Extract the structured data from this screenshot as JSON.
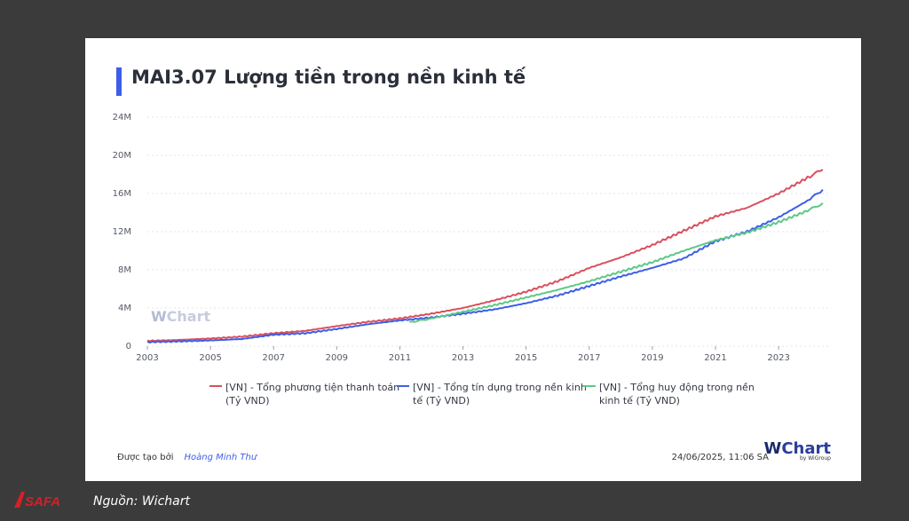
{
  "title": "MAI3.07 Lượng tiền trong nền kinh tế",
  "watermark": "Chart",
  "footer": {
    "created_by_label": "Được tạo bởi",
    "author": "Hoàng Minh Thư",
    "date": "24/06/2025, 11:06 SA",
    "logo_text": "Chart",
    "logo_by": "by WiGroup"
  },
  "source": "Nguồn: Wichart",
  "source_logo": "SAFA",
  "colors": {
    "accent": "#3d5ee8",
    "s1": "#d9505f",
    "s2": "#3d5ee8",
    "s3": "#5cc985"
  },
  "chart_data": {
    "type": "line",
    "title": "MAI3.07 Lượng tiền trong nền kinh tế",
    "xlim": [
      2003,
      2024.6
    ],
    "ylim": [
      0,
      24
    ],
    "yticks": [
      "0",
      "4M",
      "8M",
      "12M",
      "16M",
      "20M",
      "24M"
    ],
    "ytick_values": [
      0,
      4,
      8,
      12,
      16,
      20,
      24
    ],
    "xticks": [
      2003,
      2005,
      2007,
      2009,
      2011,
      2013,
      2015,
      2017,
      2019,
      2021,
      2023
    ],
    "grid": true,
    "legend_position": "bottom",
    "series": [
      {
        "name": "[VN] - Tổng phương tiện thanh toán (Tỷ VND)",
        "legend_lines": [
          "[VN] - Tổng phương tiện thanh toán",
          "(Tỷ VND)"
        ],
        "color": "#d9505f",
        "points": [
          [
            2003,
            0.55
          ],
          [
            2004,
            0.65
          ],
          [
            2005,
            0.8
          ],
          [
            2006,
            1.0
          ],
          [
            2007,
            1.35
          ],
          [
            2008,
            1.6
          ],
          [
            2009,
            2.1
          ],
          [
            2010,
            2.55
          ],
          [
            2011,
            2.9
          ],
          [
            2012,
            3.4
          ],
          [
            2013,
            4.0
          ],
          [
            2014,
            4.8
          ],
          [
            2015,
            5.7
          ],
          [
            2016,
            6.8
          ],
          [
            2017,
            8.2
          ],
          [
            2018,
            9.3
          ],
          [
            2019,
            10.6
          ],
          [
            2020,
            12.1
          ],
          [
            2021,
            13.6
          ],
          [
            2022,
            14.5
          ],
          [
            2023,
            16.0
          ],
          [
            2024,
            17.8
          ],
          [
            2024.4,
            18.5
          ]
        ]
      },
      {
        "name": "[VN] - Tổng tín dụng trong nền kinh tế (Tỷ VND)",
        "legend_lines": [
          "[VN] - Tổng tín dụng trong nền kinh",
          "tế (Tỷ VND)"
        ],
        "color": "#3d5ee8",
        "points": [
          [
            2003,
            0.42
          ],
          [
            2004,
            0.5
          ],
          [
            2005,
            0.6
          ],
          [
            2006,
            0.75
          ],
          [
            2007,
            1.2
          ],
          [
            2008,
            1.35
          ],
          [
            2009,
            1.8
          ],
          [
            2010,
            2.3
          ],
          [
            2011,
            2.7
          ],
          [
            2012,
            3.0
          ],
          [
            2013,
            3.4
          ],
          [
            2014,
            3.85
          ],
          [
            2015,
            4.5
          ],
          [
            2016,
            5.3
          ],
          [
            2017,
            6.3
          ],
          [
            2018,
            7.3
          ],
          [
            2019,
            8.2
          ],
          [
            2020,
            9.2
          ],
          [
            2021,
            11.0
          ],
          [
            2022,
            12.0
          ],
          [
            2023,
            13.5
          ],
          [
            2024,
            15.4
          ],
          [
            2024.4,
            16.4
          ]
        ]
      },
      {
        "name": "[VN] - Tổng huy động trong nền kinh tế (Tỷ VND)",
        "legend_lines": [
          "[VN] - Tổng huy động trong nền",
          "kinh tế (Tỷ VND)"
        ],
        "color": "#5cc985",
        "points": [
          [
            2011.3,
            2.5
          ],
          [
            2012,
            2.9
          ],
          [
            2013,
            3.6
          ],
          [
            2014,
            4.3
          ],
          [
            2015,
            5.1
          ],
          [
            2016,
            5.9
          ],
          [
            2017,
            6.8
          ],
          [
            2018,
            7.8
          ],
          [
            2019,
            8.8
          ],
          [
            2020,
            10.0
          ],
          [
            2021,
            11.1
          ],
          [
            2022,
            11.9
          ],
          [
            2023,
            13.0
          ],
          [
            2024,
            14.3
          ],
          [
            2024.4,
            15.0
          ]
        ]
      }
    ]
  }
}
